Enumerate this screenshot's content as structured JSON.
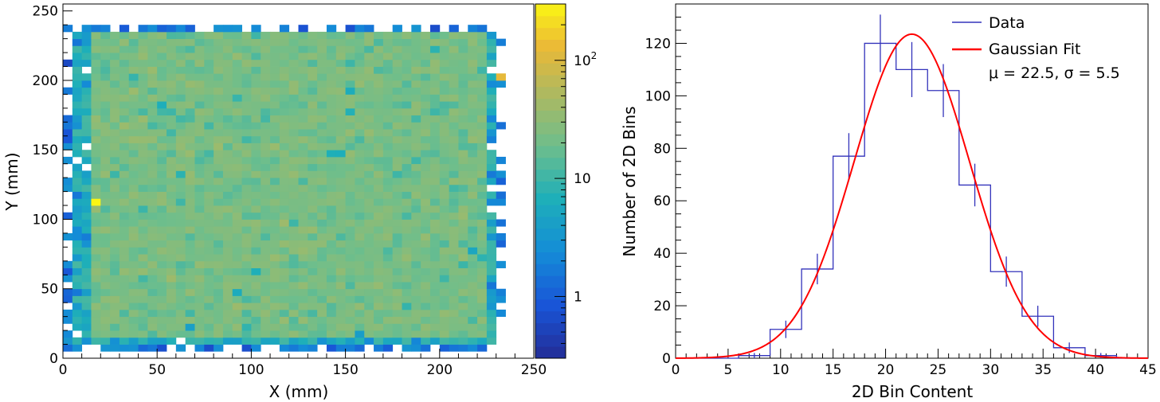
{
  "chart_data": [
    {
      "type": "heatmap",
      "xlabel": "X (mm)",
      "ylabel": "Y (mm)",
      "xlim": [
        0,
        250
      ],
      "ylim": [
        0,
        255
      ],
      "xticks": [
        {
          "value": 0,
          "label": "0"
        },
        {
          "value": 50,
          "label": "50"
        },
        {
          "value": 100,
          "label": "100"
        },
        {
          "value": 150,
          "label": "150"
        },
        {
          "value": 200,
          "label": "200"
        },
        {
          "value": 250,
          "label": "250"
        }
      ],
      "yticks": [
        {
          "value": 0,
          "label": "0"
        },
        {
          "value": 50,
          "label": "50"
        },
        {
          "value": 100,
          "label": "100"
        },
        {
          "value": 150,
          "label": "150"
        },
        {
          "value": 200,
          "label": "200"
        },
        {
          "value": 250,
          "label": "250"
        }
      ],
      "bin_size_mm": 5,
      "typical_bin_content": 22.5,
      "hot_bins": [
        {
          "x": 17.5,
          "y": 112.5,
          "value": 300
        },
        {
          "x": 232.5,
          "y": 202.5,
          "value": 120
        }
      ],
      "colorbar": {
        "scale": "log",
        "range": [
          0.3,
          300
        ],
        "ticks": [
          {
            "value": 1,
            "label": "1"
          },
          {
            "value": 10,
            "label": "10"
          },
          {
            "value": 100,
            "label": "10",
            "exponent": "2"
          }
        ]
      }
    },
    {
      "type": "histogram",
      "xlabel": "2D Bin Content",
      "ylabel": "Number of 2D Bins",
      "xlim": [
        0,
        45
      ],
      "ylim": [
        0,
        135
      ],
      "xticks": [
        {
          "value": 0,
          "label": "0"
        },
        {
          "value": 5,
          "label": "5"
        },
        {
          "value": 10,
          "label": "10"
        },
        {
          "value": 15,
          "label": "15"
        },
        {
          "value": 20,
          "label": "20"
        },
        {
          "value": 25,
          "label": "25"
        },
        {
          "value": 30,
          "label": "30"
        },
        {
          "value": 35,
          "label": "35"
        },
        {
          "value": 40,
          "label": "40"
        },
        {
          "value": 45,
          "label": "45"
        }
      ],
      "yticks": [
        {
          "value": 0,
          "label": "0"
        },
        {
          "value": 20,
          "label": "20"
        },
        {
          "value": 40,
          "label": "40"
        },
        {
          "value": 60,
          "label": "60"
        },
        {
          "value": 80,
          "label": "80"
        },
        {
          "value": 100,
          "label": "100"
        },
        {
          "value": 120,
          "label": "120"
        }
      ],
      "bin_edges": [
        0,
        3,
        6,
        9,
        12,
        15,
        18,
        21,
        24,
        27,
        30,
        33,
        36,
        39,
        42,
        45
      ],
      "series": [
        {
          "name": "Data",
          "color": "#3333bb",
          "values": [
            0,
            0,
            1,
            11,
            34,
            77,
            120,
            110,
            102,
            66,
            33,
            16,
            4,
            1,
            0
          ]
        },
        {
          "name": "Gaussian Fit",
          "color": "#ff0000",
          "mu": 22.5,
          "sigma": 5.5,
          "amplitude": 123.5
        }
      ],
      "legend": {
        "position": "top-right",
        "items": [
          {
            "label": "Data",
            "color": "#3333bb"
          },
          {
            "label": "Gaussian Fit",
            "color": "#ff0000",
            "sublabel": "μ = 22.5, σ = 5.5"
          }
        ]
      }
    }
  ]
}
